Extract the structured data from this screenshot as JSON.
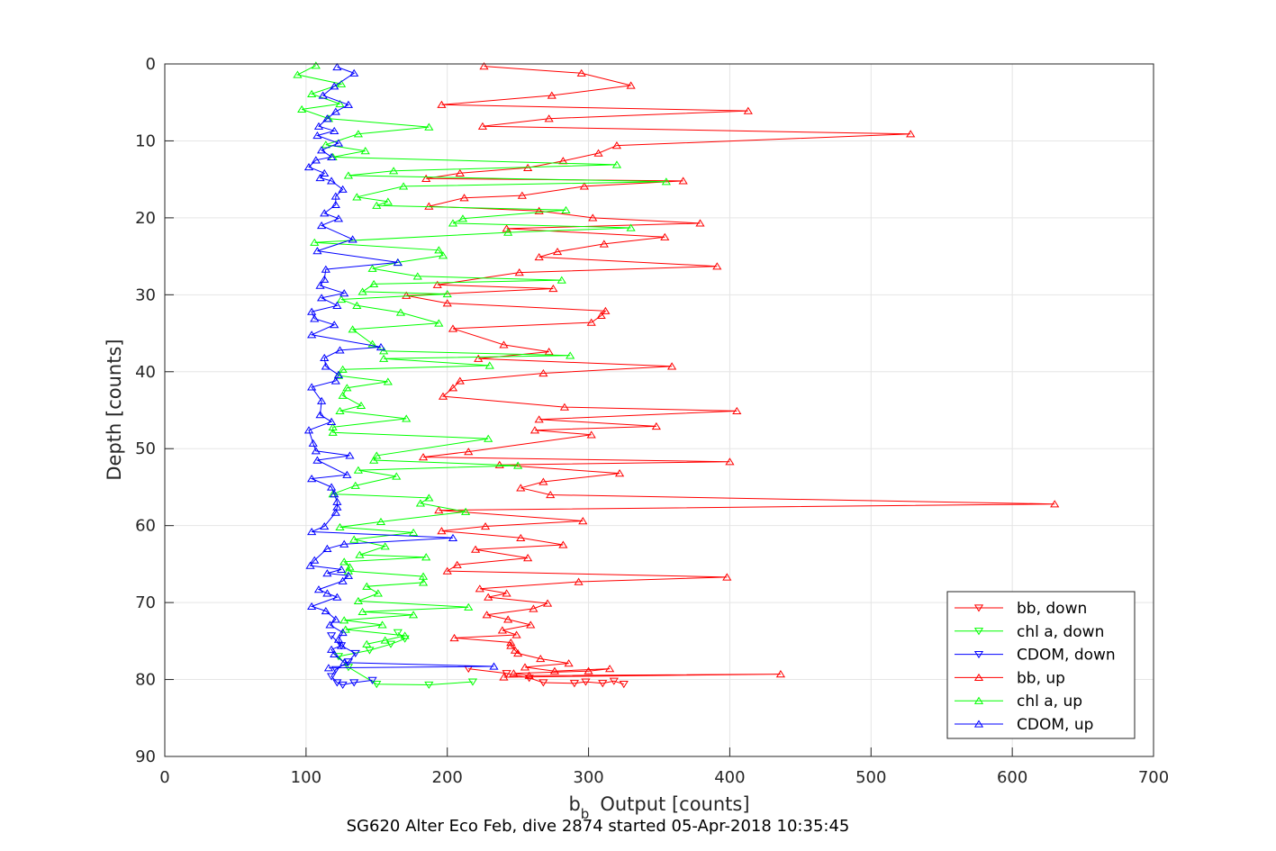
{
  "chart_data": {
    "type": "scatter",
    "xlabel": "Output [counts]",
    "xlabel_symbol": "b",
    "xlabel_subscript": "b",
    "ylabel": "Depth [counts]",
    "caption": "SG620 Alter Eco Feb, dive 2874 started 05-Apr-2018 10:35:45",
    "xlim": [
      0,
      700
    ],
    "ylim": [
      0,
      90
    ],
    "y_reversed": true,
    "grid": true,
    "legend_position": "bottom-right",
    "x_ticks": [
      "0",
      "100",
      "200",
      "300",
      "400",
      "500",
      "600",
      "700"
    ],
    "y_ticks": [
      "0",
      "10",
      "20",
      "30",
      "40",
      "50",
      "60",
      "70",
      "80",
      "90"
    ],
    "series": [
      {
        "name": "bb, down",
        "color": "#ff0000",
        "marker": "triangle-down",
        "x": [
          325,
          318,
          310,
          298,
          290,
          268,
          258,
          242,
          215
        ],
        "y": [
          80.6,
          80.2,
          80.5,
          80.3,
          80.5,
          80.4,
          79.8,
          79.2,
          78.6
        ]
      },
      {
        "name": "chl a, down",
        "color": "#00ff00",
        "marker": "triangle-down",
        "x": [
          218,
          187,
          150,
          130,
          123,
          145,
          160,
          170,
          165
        ],
        "y": [
          80.3,
          80.7,
          80.6,
          78.4,
          77.0,
          76.2,
          75.4,
          74.7,
          73.9
        ]
      },
      {
        "name": "CDOM, down",
        "color": "#0000ff",
        "marker": "triangle-down",
        "x": [
          147,
          134,
          126,
          122,
          118,
          121,
          130,
          135,
          125,
          118
        ],
        "y": [
          80.1,
          80.4,
          80.7,
          80.4,
          79.6,
          78.7,
          77.7,
          76.6,
          75.6,
          74.3
        ]
      },
      {
        "name": "bb, up",
        "color": "#ff0000",
        "marker": "triangle-up",
        "x": [
          226,
          295,
          330,
          274,
          196,
          413,
          272,
          225,
          528,
          320,
          307,
          282,
          257,
          209,
          185,
          367,
          297,
          253,
          212,
          187,
          265,
          303,
          379,
          242,
          354,
          311,
          278,
          265,
          391,
          251,
          193,
          275,
          171,
          200,
          312,
          309,
          302,
          204,
          240,
          272,
          222,
          359,
          268,
          209,
          204,
          197,
          283,
          405,
          265,
          348,
          262,
          302,
          215,
          183,
          400,
          237,
          322,
          268,
          252,
          273,
          630,
          194,
          296,
          227,
          196,
          252,
          282,
          220,
          257,
          207,
          200,
          398,
          293,
          223,
          242,
          229,
          271,
          261,
          228,
          243,
          259,
          239,
          249,
          205,
          245,
          245,
          248,
          250,
          266,
          286,
          255,
          276,
          315,
          300,
          247,
          258,
          436,
          240
        ],
        "y": [
          0.3,
          1.2,
          2.8,
          4.1,
          5.3,
          6.1,
          7.1,
          8.1,
          9.1,
          10.6,
          11.6,
          12.6,
          13.5,
          14.2,
          14.9,
          15.2,
          15.9,
          17.1,
          17.4,
          18.5,
          19.1,
          20.0,
          20.7,
          21.4,
          22.5,
          23.4,
          24.4,
          25.1,
          26.3,
          27.1,
          28.7,
          29.2,
          30.1,
          31.1,
          32.1,
          32.7,
          33.6,
          34.4,
          36.5,
          37.4,
          38.3,
          39.3,
          40.2,
          41.2,
          42.1,
          43.2,
          44.6,
          45.1,
          46.2,
          47.1,
          47.6,
          48.2,
          50.4,
          51.1,
          51.7,
          52.1,
          53.2,
          54.3,
          55.1,
          56.0,
          57.2,
          58.0,
          59.4,
          60.1,
          60.7,
          61.6,
          62.5,
          63.1,
          64.2,
          65.1,
          65.9,
          66.7,
          67.3,
          68.2,
          68.8,
          69.3,
          70.1,
          70.8,
          71.6,
          72.2,
          72.9,
          73.6,
          74.2,
          74.6,
          75.2,
          75.6,
          76.2,
          76.6,
          77.3,
          77.9,
          78.4,
          78.9,
          78.6,
          78.9,
          79.2,
          79.5,
          79.3,
          79.7
        ]
      },
      {
        "name": "chl a, up",
        "color": "#00ff00",
        "marker": "triangle-up",
        "x": [
          107,
          94,
          125,
          104,
          124,
          97,
          116,
          187,
          137,
          114,
          142,
          119,
          320,
          162,
          130,
          355,
          169,
          136,
          158,
          150,
          284,
          211,
          204,
          330,
          243,
          106,
          194,
          197,
          165,
          147,
          179,
          281,
          148,
          140,
          200,
          125,
          136,
          167,
          194,
          133,
          147,
          155,
          287,
          155,
          230,
          126,
          123,
          158,
          129,
          126,
          139,
          124,
          171,
          119,
          119,
          229,
          150,
          148,
          250,
          137,
          164,
          135,
          119,
          187,
          181,
          213,
          153,
          124,
          176,
          134,
          156,
          138,
          185,
          127,
          131,
          130,
          183,
          183,
          143,
          151,
          137,
          215,
          140,
          176,
          127,
          154,
          128,
          170,
          156,
          143
        ],
        "y": [
          0.2,
          1.4,
          2.6,
          3.9,
          5.2,
          5.9,
          7.1,
          8.2,
          9.1,
          10.5,
          11.3,
          12.1,
          13.1,
          13.9,
          14.5,
          15.3,
          15.9,
          17.3,
          17.9,
          18.4,
          19.0,
          20.1,
          20.7,
          21.3,
          21.9,
          23.2,
          24.2,
          24.9,
          25.8,
          26.6,
          27.6,
          28.1,
          28.6,
          29.6,
          29.9,
          30.6,
          31.4,
          32.3,
          33.7,
          34.5,
          36.4,
          37.3,
          37.9,
          38.3,
          39.2,
          39.7,
          40.5,
          41.3,
          42.1,
          43.1,
          44.4,
          45.1,
          46.1,
          47.2,
          47.9,
          48.7,
          50.9,
          51.5,
          52.2,
          52.8,
          53.6,
          54.8,
          55.9,
          56.4,
          57.1,
          58.2,
          59.5,
          60.2,
          60.9,
          61.8,
          62.7,
          63.8,
          64.1,
          64.7,
          65.4,
          65.9,
          66.6,
          67.4,
          67.9,
          68.8,
          69.8,
          70.6,
          71.2,
          71.6,
          72.3,
          72.9,
          73.5,
          74.3,
          74.9,
          75.4
        ]
      },
      {
        "name": "CDOM, up",
        "color": "#0000ff",
        "marker": "triangle-up",
        "x": [
          122,
          134,
          120,
          112,
          130,
          121,
          115,
          109,
          120,
          108,
          123,
          111,
          118,
          107,
          102,
          113,
          110,
          118,
          126,
          121,
          121,
          113,
          123,
          111,
          133,
          108,
          165,
          114,
          113,
          110,
          127,
          111,
          122,
          104,
          106,
          120,
          104,
          153,
          124,
          113,
          114,
          123,
          121,
          104,
          111,
          110,
          118,
          102,
          105,
          107,
          131,
          108,
          129,
          104,
          118,
          120,
          122,
          122,
          121,
          113,
          104,
          204,
          127,
          115,
          106,
          103,
          125,
          115,
          130,
          126,
          109,
          115,
          122,
          104,
          114,
          121,
          117,
          126,
          123,
          125,
          118,
          120,
          127,
          233,
          116
        ],
        "y": [
          0.4,
          1.2,
          2.9,
          4.1,
          5.3,
          6.2,
          7.1,
          8.1,
          8.7,
          9.3,
          10.3,
          11.2,
          12.1,
          12.5,
          13.4,
          14.2,
          14.8,
          15.2,
          16.3,
          17.2,
          18.3,
          19.4,
          20.1,
          21.0,
          22.8,
          24.3,
          25.8,
          26.7,
          28.0,
          28.8,
          29.8,
          30.4,
          31.4,
          32.2,
          33.1,
          33.9,
          35.2,
          36.8,
          37.2,
          38.2,
          39.3,
          40.4,
          41.2,
          42.0,
          43.8,
          45.6,
          46.5,
          47.6,
          49.3,
          50.3,
          50.9,
          51.5,
          53.4,
          53.9,
          55.0,
          55.9,
          56.9,
          57.6,
          58.3,
          60.1,
          60.8,
          61.6,
          62.4,
          63.0,
          64.5,
          65.2,
          65.7,
          66.2,
          66.5,
          67.2,
          68.3,
          68.8,
          69.3,
          70.5,
          71.1,
          72.2,
          72.9,
          73.9,
          74.8,
          75.6,
          76.1,
          76.7,
          77.8,
          78.3,
          78.5
        ]
      }
    ]
  }
}
